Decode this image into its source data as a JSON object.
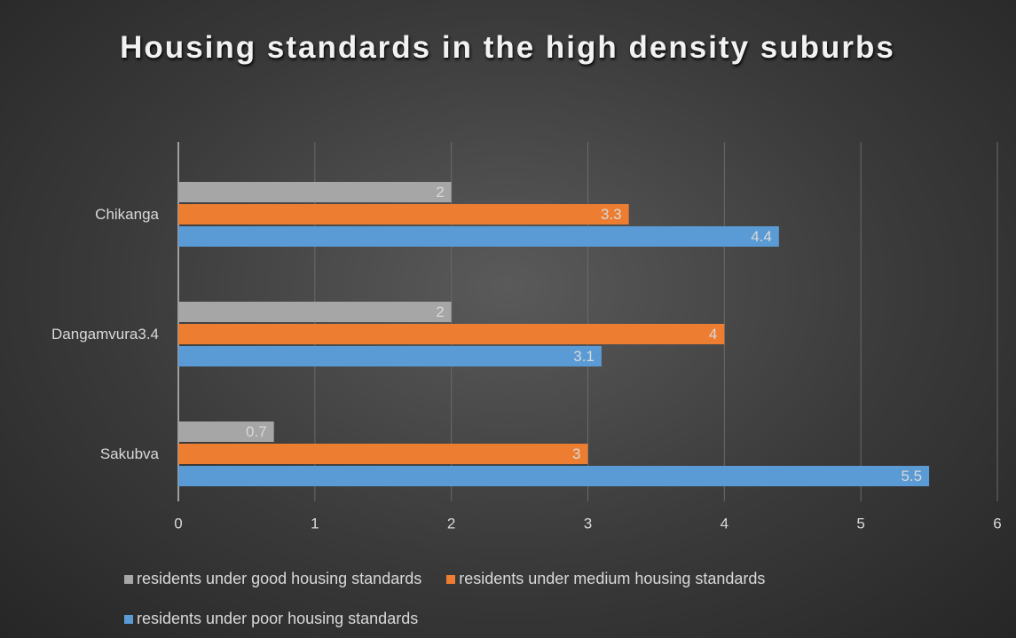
{
  "chart_data": {
    "type": "barh",
    "title": "Housing standards in the high density suburbs",
    "categories": [
      "Chikanga",
      "Dangamvura3.4",
      "Sakubva"
    ],
    "series": [
      {
        "name": "residents under good housing standards",
        "color": "#a6a6a6",
        "values": [
          2,
          2,
          0.7
        ]
      },
      {
        "name": "residents under medium housing standards",
        "color": "#ed7d31",
        "values": [
          3.3,
          4,
          3
        ]
      },
      {
        "name": "residents under poor housing standards",
        "color": "#5b9bd5",
        "values": [
          4.4,
          3.1,
          5.5
        ]
      }
    ],
    "xlim": [
      0,
      6
    ],
    "xticks": [
      0,
      1,
      2,
      3,
      4,
      5,
      6
    ],
    "grid": true,
    "legend": "bottom"
  }
}
